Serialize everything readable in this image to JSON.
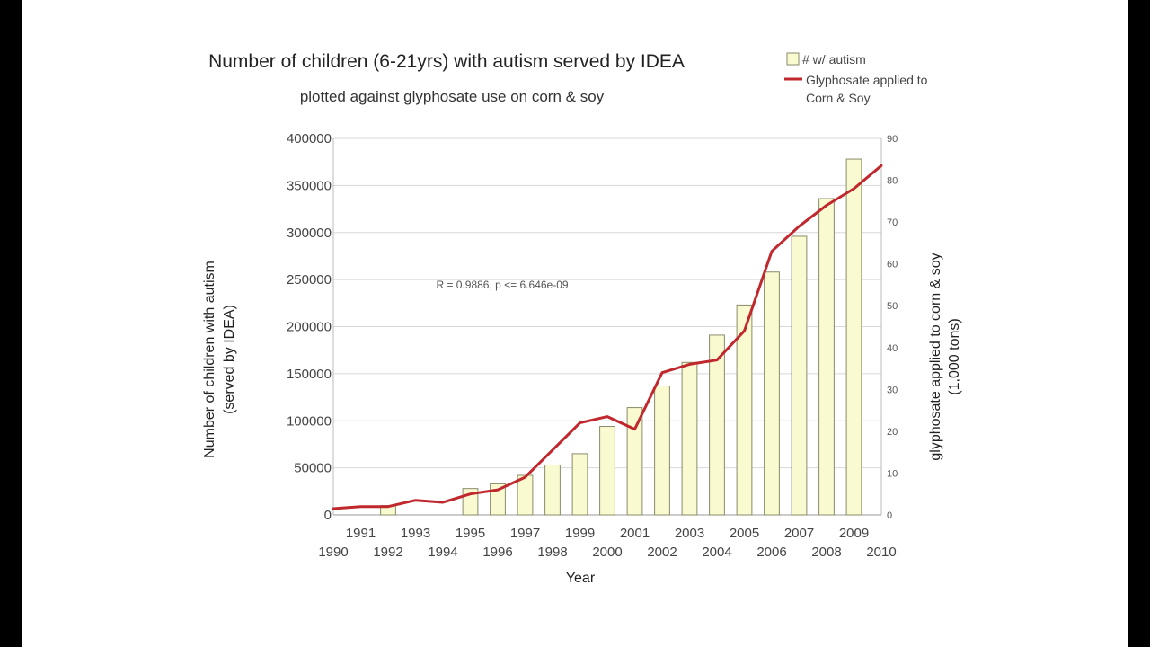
{
  "chart_data": {
    "type": "bar+line",
    "title": "Number of children (6-21yrs) with autism served by IDEA",
    "subtitle": "plotted against glyphosate use on corn & soy",
    "xlabel": "Year",
    "ylabel_left_line1": "Number of children with autism",
    "ylabel_left_line2": "(served by IDEA)",
    "ylabel_right_line1": "glyphosate applied to corn & soy",
    "ylabel_right_line2": "(1,000 tons)",
    "annotation": "R = 0.9886, p <= 6.646e-09",
    "x_years": [
      1990,
      1991,
      1992,
      1993,
      1994,
      1995,
      1996,
      1997,
      1998,
      1999,
      2000,
      2001,
      2002,
      2003,
      2004,
      2005,
      2006,
      2007,
      2008,
      2009,
      2010
    ],
    "x_tick_labels": [
      "1990",
      "1991",
      "1992",
      "1993",
      "1994",
      "1995",
      "1996",
      "1997",
      "1998",
      "1999",
      "2000",
      "2001",
      "2002",
      "2003",
      "2004",
      "2005",
      "2006",
      "2007",
      "2008",
      "2009",
      "2010"
    ],
    "y_left_ticks": [
      "0",
      "50000",
      "100000",
      "150000",
      "200000",
      "250000",
      "300000",
      "350000",
      "400000"
    ],
    "y_left_lim": [
      0,
      400000
    ],
    "y_right_ticks": [
      "0",
      "10",
      "20",
      "30",
      "40",
      "50",
      "60",
      "70",
      "80",
      "90"
    ],
    "y_right_lim": [
      0,
      90
    ],
    "grid": "horizontal",
    "legend_position": "top-right",
    "series": [
      {
        "name": "# w/ autism",
        "type": "bar",
        "axis": "left",
        "color": "#fafad0",
        "border": "#8a8a6a",
        "years": [
          1992,
          1995,
          1996,
          1997,
          1998,
          1999,
          2000,
          2001,
          2002,
          2003,
          2004,
          2005,
          2006,
          2007,
          2008,
          2009
        ],
        "values": [
          10000,
          28000,
          33000,
          42000,
          53000,
          65000,
          94000,
          114000,
          137000,
          162000,
          191000,
          223000,
          258000,
          296000,
          336000,
          378000
        ]
      },
      {
        "name_line1": "Glyphosate applied to",
        "name_line2": "Corn & Soy",
        "type": "line",
        "axis": "right",
        "color": "#c0282d",
        "years": [
          1990,
          1991,
          1992,
          1993,
          1994,
          1995,
          1996,
          1997,
          1998,
          1999,
          2000,
          2001,
          2002,
          2003,
          2004,
          2005,
          2006,
          2007,
          2008,
          2009,
          2010
        ],
        "values": [
          1.5,
          2,
          2,
          3.5,
          3,
          5,
          6,
          9,
          15.5,
          22,
          23.5,
          20.5,
          34,
          36,
          37,
          44,
          63,
          69,
          74,
          78,
          83.5
        ]
      }
    ]
  }
}
